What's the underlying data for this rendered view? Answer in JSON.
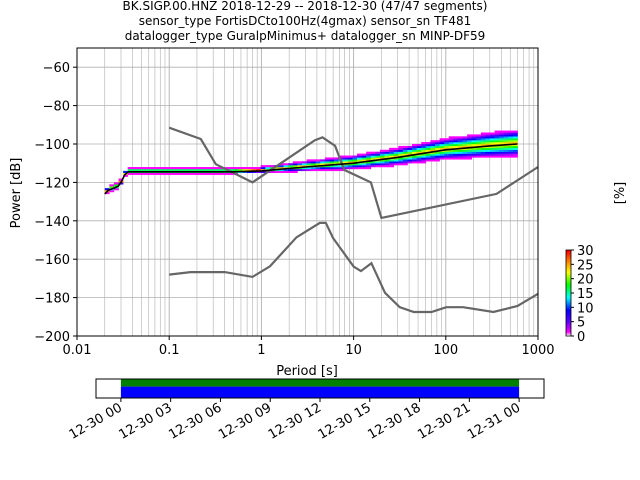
{
  "chart_data": {
    "type": "ppsd",
    "title_lines": [
      "BK.SIGP.00.HNZ   2018-12-29 -- 2018-12-30  (47/47 segments)",
      "sensor_type FortisDCto100Hz(4gmax) sensor_sn TF481",
      "datalogger_type GuralpMinimus+ datalogger_sn MINP-DF59"
    ],
    "xlabel": "Period [s]",
    "ylabel": "Power [dB]",
    "xscale": "log",
    "xlim": [
      0.01,
      1000
    ],
    "ylim": [
      -200,
      -50
    ],
    "grid": true,
    "x_tick_labels": [
      "0.01",
      "0.1",
      "1",
      "10",
      "100",
      "1000"
    ],
    "x_tick_values": [
      0.01,
      0.1,
      1,
      10,
      100,
      1000
    ],
    "y_tick_values": [
      -200,
      -180,
      -160,
      -140,
      -120,
      -100,
      -80,
      -60
    ],
    "y_tick_labels": [
      "−200",
      "−180",
      "−160",
      "−140",
      "−120",
      "−100",
      "−80",
      "−60"
    ],
    "colorbar": {
      "label": "[%]",
      "min": 0,
      "max": 30,
      "tick_values": [
        0,
        5,
        10,
        15,
        20,
        25,
        30
      ],
      "tick_labels": [
        "0",
        "5",
        "10",
        "15",
        "20",
        "25",
        "30"
      ]
    },
    "nhnm": [
      [
        0.1,
        -91.5
      ],
      [
        0.22,
        -97.4
      ],
      [
        0.32,
        -110.5
      ],
      [
        0.8,
        -120
      ],
      [
        3.8,
        -98
      ],
      [
        4.6,
        -96.5
      ],
      [
        6.3,
        -101
      ],
      [
        7.9,
        -113.5
      ],
      [
        15.4,
        -120
      ],
      [
        20,
        -138.5
      ],
      [
        354.8,
        -126
      ],
      [
        1000,
        -112
      ]
    ],
    "nlnm": [
      [
        0.1,
        -168
      ],
      [
        0.17,
        -166.7
      ],
      [
        0.4,
        -166.7
      ],
      [
        0.8,
        -169.2
      ],
      [
        1.24,
        -163.7
      ],
      [
        2.4,
        -148.6
      ],
      [
        4.3,
        -141.1
      ],
      [
        5,
        -141.1
      ],
      [
        6,
        -149
      ],
      [
        10,
        -163.8
      ],
      [
        12,
        -166.2
      ],
      [
        15.6,
        -162.1
      ],
      [
        21.9,
        -177.5
      ],
      [
        31.6,
        -185
      ],
      [
        45,
        -187.5
      ],
      [
        70,
        -187.5
      ],
      [
        101,
        -185
      ],
      [
        154,
        -185
      ],
      [
        328,
        -187.5
      ],
      [
        600,
        -184.4
      ],
      [
        1000,
        -178
      ]
    ],
    "median": [
      [
        0.02,
        -126
      ],
      [
        0.022,
        -124
      ],
      [
        0.025,
        -123
      ],
      [
        0.028,
        -122
      ],
      [
        0.03,
        -120
      ],
      [
        0.033,
        -116
      ],
      [
        0.036,
        -114.5
      ],
      [
        0.05,
        -114.5
      ],
      [
        0.1,
        -114.5
      ],
      [
        0.5,
        -114.5
      ],
      [
        1,
        -114
      ],
      [
        3,
        -112
      ],
      [
        10,
        -110
      ],
      [
        30,
        -107
      ],
      [
        100,
        -103
      ],
      [
        300,
        -101
      ],
      [
        600,
        -100
      ]
    ],
    "time_axis": {
      "tick_labels": [
        "12-30 00",
        "12-30 03",
        "12-30 06",
        "12-30 09",
        "12-30 12",
        "12-30 15",
        "12-30 18",
        "12-30 21",
        "12-31 00"
      ],
      "start_hour": -1.5,
      "end_hour": 25.5,
      "coverage_start_hour": 0,
      "coverage_end_hour": 24,
      "coverage_colors": [
        "#008000",
        "#0000ff"
      ]
    }
  }
}
